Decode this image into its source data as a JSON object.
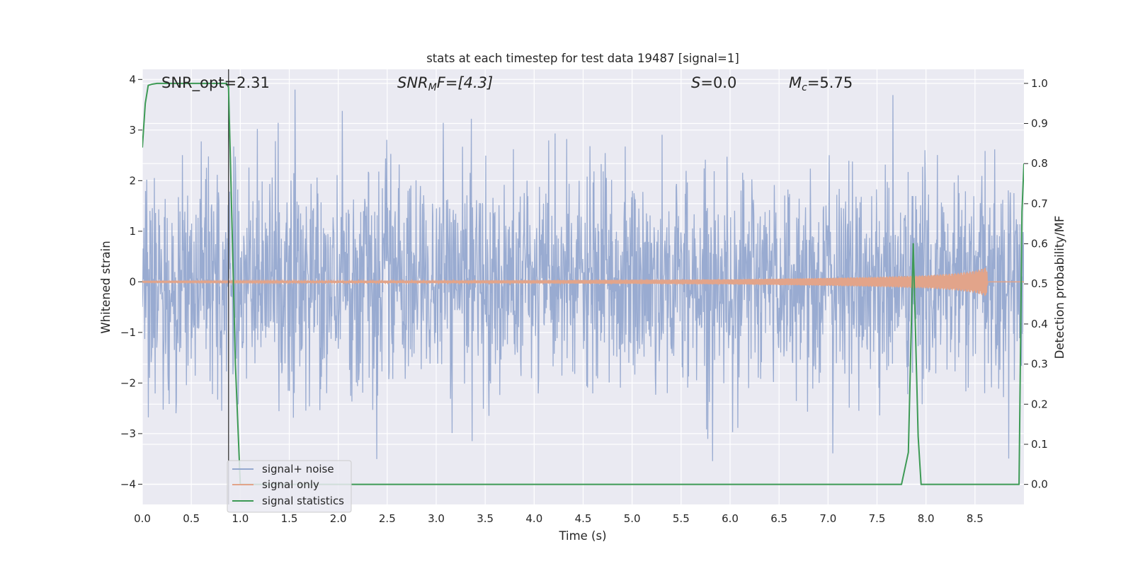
{
  "chart_data": {
    "type": "line",
    "title": "stats at each timestep for test data 19487 [signal=1]",
    "xlabel": "Time (s)",
    "ylabel": "Whitened strain",
    "ylabel_right": "Detection probability/MF",
    "xlim": [
      0,
      9
    ],
    "ylim": [
      -4.4,
      4.2
    ],
    "ylim_right": [
      -0.05,
      1.035
    ],
    "x_ticks": [
      "0.0",
      "0.5",
      "1.0",
      "1.5",
      "2.0",
      "2.5",
      "3.0",
      "3.5",
      "4.0",
      "4.5",
      "5.0",
      "5.5",
      "6.0",
      "6.5",
      "7.0",
      "7.5",
      "8.0",
      "8.5"
    ],
    "y_ticks": [
      "4",
      "3",
      "2",
      "1",
      "0",
      "−1",
      "−2",
      "−3",
      "−4"
    ],
    "y_ticks_right": [
      "1.0",
      "0.9",
      "0.8",
      "0.7",
      "0.6",
      "0.5",
      "0.4",
      "0.3",
      "0.2",
      "0.1",
      "0.0"
    ],
    "grid": true,
    "legend_position": "lower-left",
    "annotations": [
      {
        "main": "SNR_opt=2.31",
        "italic": false
      },
      {
        "main": "SNR",
        "sub": "M",
        "rest": "F=[4.3]",
        "italic": true
      },
      {
        "main": "S",
        "rest": "=0.0",
        "italic": true
      },
      {
        "main": "M",
        "sub": "c",
        "rest": "=5.75",
        "italic": true
      }
    ],
    "vline_x": 0.88,
    "series": [
      {
        "name": "signal+ noise",
        "axis": "left",
        "color": "#95a8cf",
        "description_values": {
          "typical_range": [
            -1.5,
            1.5
          ],
          "extreme_max": 3.8,
          "extreme_min": -3.7
        }
      },
      {
        "name": "signal only",
        "axis": "left",
        "color": "#e2a48a",
        "envelope": {
          "x": [
            0,
            2,
            4,
            5,
            6,
            7,
            7.5,
            8.0,
            8.3,
            8.5,
            8.6,
            8.62,
            8.63,
            9.0
          ],
          "amp": [
            0.01,
            0.02,
            0.03,
            0.04,
            0.05,
            0.08,
            0.1,
            0.13,
            0.17,
            0.22,
            0.28,
            0.3,
            0.0,
            0.0
          ]
        }
      },
      {
        "name": "signal statistics",
        "axis": "right",
        "color": "#3d9a55",
        "x": [
          0.0,
          0.03,
          0.06,
          0.1,
          0.15,
          0.6,
          0.86,
          0.88,
          0.9,
          0.95,
          1.0,
          1.5,
          3.0,
          5.0,
          7.0,
          7.75,
          7.82,
          7.87,
          7.92,
          7.95,
          8.5,
          8.95,
          8.98,
          9.0
        ],
        "y": [
          0.84,
          0.95,
          0.995,
          0.998,
          1.0,
          1.0,
          1.0,
          0.99,
          0.8,
          0.3,
          0.0,
          0.0,
          0.0,
          0.0,
          0.0,
          0.0,
          0.08,
          0.6,
          0.12,
          0.0,
          0.0,
          0.0,
          0.68,
          0.8
        ]
      }
    ]
  }
}
